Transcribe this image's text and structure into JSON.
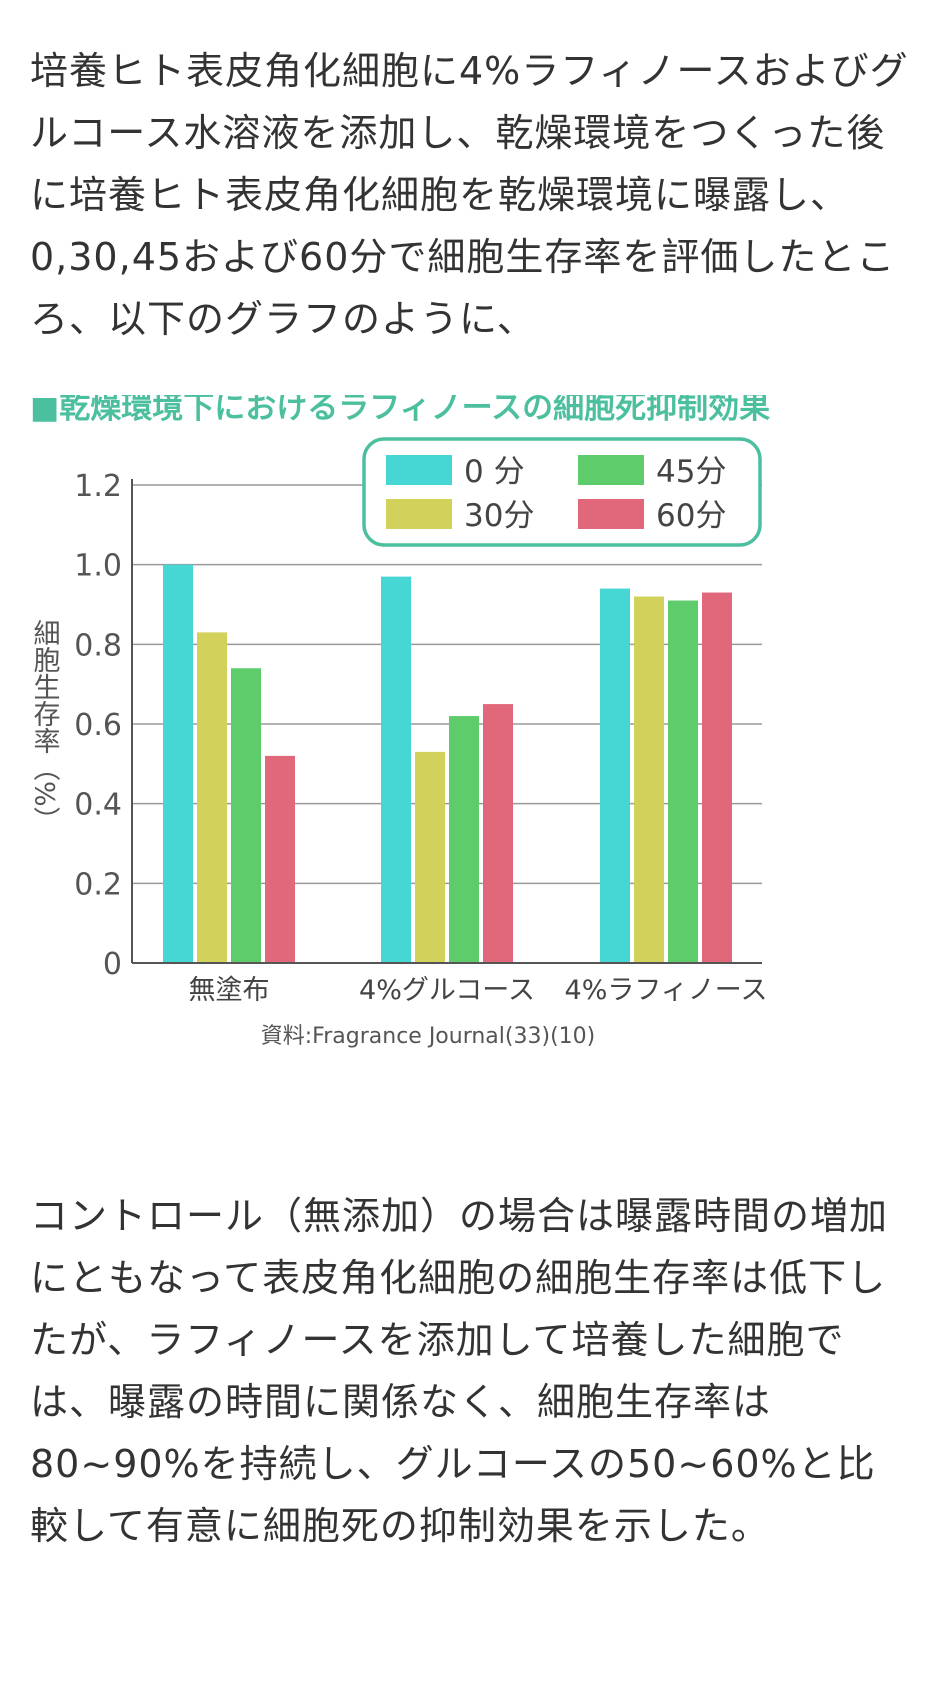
{
  "intro_text": "培養ヒト表皮角化細胞に4%ラフィノースおよびグルコース水溶液を添加し、乾燥環境をつくった後に培養ヒト表皮角化細胞を乾燥環境に曝露し、0,30,45および60分で細胞生存率を評価したところ、以下のグラフのように、",
  "outro_text": "コントロール（無添加）の場合は曝露時間の増加にともなって表皮角化細胞の細胞生存率は低下したが、ラフィノースを添加して培養した細胞では、曝露の時間に関係なく、細胞生存率は80~90%を持続し、グルコースの50~60%と比較して有意に細胞死の抑制効果を示した。",
  "chart_data": {
    "type": "bar",
    "title": "■乾燥環境下におけるラフィノースの細胞死抑制効果",
    "ylabel": "細胞生存率（%）",
    "xlabel": "",
    "ylim": [
      0,
      1.2
    ],
    "yticks": [
      "1.2",
      "1.0",
      "0.8",
      "0.6",
      "0.4",
      "0.2",
      "0"
    ],
    "ytick_values": [
      1.2,
      1.0,
      0.8,
      0.6,
      0.4,
      0.2,
      0
    ],
    "grid": true,
    "legend_position": "top-right",
    "categories": [
      "無塗布",
      "4%グルコース",
      "4%ラフィノース"
    ],
    "series": [
      {
        "name": "0 分",
        "color": "#46d6d4",
        "values": [
          1.0,
          0.97,
          0.94
        ]
      },
      {
        "name": "30分",
        "color": "#d1d15c",
        "values": [
          0.83,
          0.53,
          0.92
        ]
      },
      {
        "name": "45分",
        "color": "#5fcc6c",
        "values": [
          0.74,
          0.62,
          0.91
        ]
      },
      {
        "name": "60分",
        "color": "#e0687a",
        "values": [
          0.52,
          0.65,
          0.93
        ]
      }
    ],
    "source": "資料:Fragrance Journal(33)(10)"
  }
}
